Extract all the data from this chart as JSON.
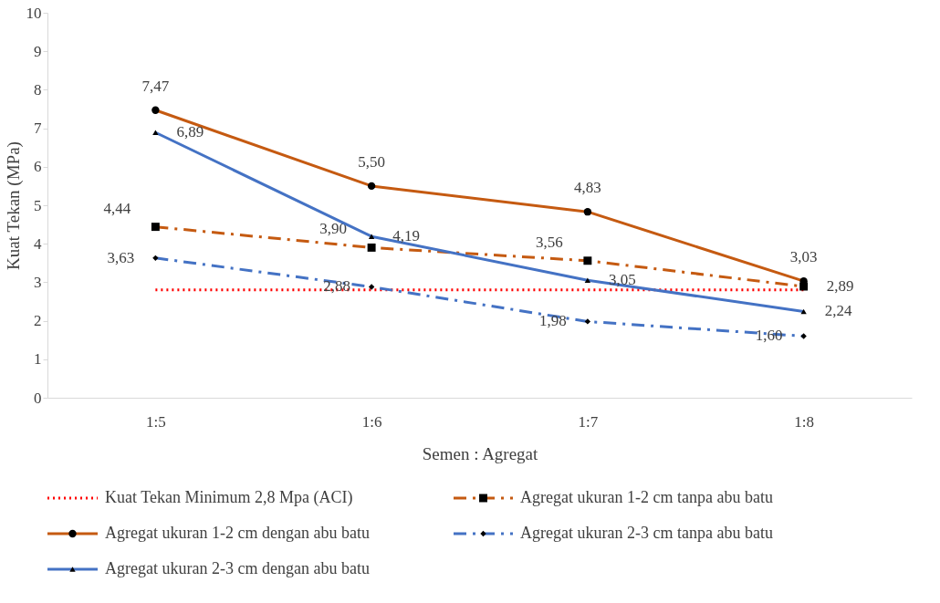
{
  "chart_data": {
    "type": "line",
    "xlabel": "Semen : Agregat",
    "ylabel": "Kuat Tekan (MPa)",
    "categories": [
      "1:5",
      "1:6",
      "1:7",
      "1:8"
    ],
    "ylim": [
      0,
      10
    ],
    "yticks": [
      0,
      1,
      2,
      3,
      4,
      5,
      6,
      7,
      8,
      9,
      10
    ],
    "grid": false,
    "legend": "bottom",
    "series": [
      {
        "name": "Kuat Tekan Minimum 2,8 Mpa (ACI)",
        "color": "#ff0000",
        "values": [
          2.8,
          2.8,
          2.8,
          2.8
        ],
        "line_style": "dotted",
        "marker": "none"
      },
      {
        "name": "Agregat ukuran 1-2 cm tanpa abu batu",
        "color": "#c55a11",
        "values": [
          4.44,
          3.9,
          3.56,
          2.89
        ],
        "line_style": "dashed",
        "marker": "square",
        "value_labels": [
          "4,44",
          "3,90",
          "3,56",
          "2,89"
        ]
      },
      {
        "name": "Agregat ukuran 1-2 cm dengan abu batu",
        "color": "#c55a11",
        "values": [
          7.47,
          5.5,
          4.83,
          3.03
        ],
        "line_style": "solid",
        "marker": "circle",
        "value_labels": [
          "7,47",
          "5,50",
          "4,83",
          "3,03"
        ]
      },
      {
        "name": "Agregat ukuran 2-3 cm tanpa abu batu",
        "color": "#4472c4",
        "values": [
          3.63,
          2.88,
          1.98,
          1.6
        ],
        "line_style": "dashed",
        "marker": "diamond",
        "value_labels": [
          "3,63",
          "2,88",
          "1,98",
          "1,60"
        ]
      },
      {
        "name": "Agregat ukuran 2-3 cm dengan abu batu",
        "color": "#4472c4",
        "values": [
          6.89,
          4.19,
          3.05,
          2.24
        ],
        "line_style": "solid",
        "marker": "triangle",
        "value_labels": [
          "6,89",
          "4,19",
          "3,05",
          "2,24"
        ]
      }
    ]
  }
}
